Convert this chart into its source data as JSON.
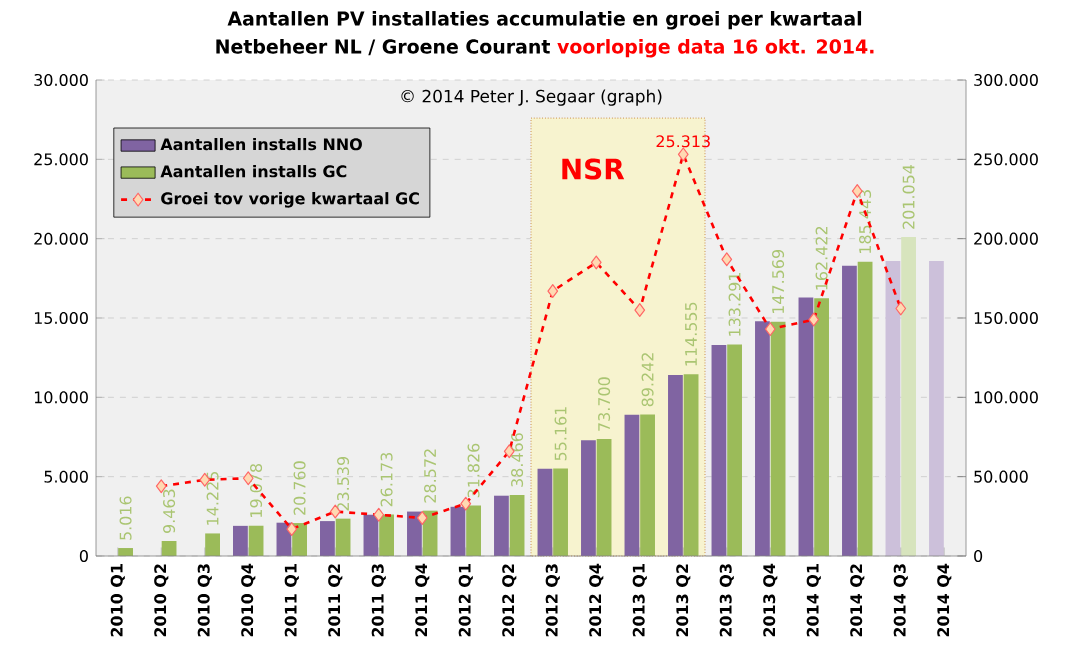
{
  "chart_data": {
    "type": "bar",
    "title": "Aantallen PV installaties accumulatie  en groei per kwartaal",
    "subtitle": "Netbeheer NL / Groene Courant",
    "annotations": [
      "voorlopige data 16 okt. 2014.",
      "© 2014 Peter J. Segaar (graph)"
    ],
    "categories": [
      "2010 Q1",
      "2010 Q2",
      "2010 Q3",
      "2010 Q4",
      "2011 Q1",
      "2011 Q2",
      "2011 Q3",
      "2011 Q4",
      "2012 Q1",
      "2012 Q2",
      "2012 Q3",
      "2012 Q4",
      "2013 Q1",
      "2013 Q2",
      "2013 Q3",
      "2013 Q4",
      "2014 Q1",
      "2014 Q2",
      "2014 Q3",
      "2014 Q4"
    ],
    "series": [
      {
        "name": "Aantallen installs NNO",
        "axis": "y2",
        "color": "#8064a2",
        "colors": [
          "#8064a2",
          "#8064a2",
          "#8064a2",
          "#8064a2",
          "#8064a2",
          "#8064a2",
          "#8064a2",
          "#8064a2",
          "#8064a2",
          "#8064a2",
          "#8064a2",
          "#8064a2",
          "#8064a2",
          "#8064a2",
          "#8064a2",
          "#8064a2",
          "#8064a2",
          "#8064a2",
          "#ccc0da",
          "#ccc0da"
        ],
        "values": [
          null,
          null,
          null,
          19000,
          21000,
          22000,
          26000,
          28000,
          31000,
          38000,
          55000,
          73000,
          89000,
          114000,
          133000,
          148000,
          163000,
          183000,
          186000,
          186000
        ]
      },
      {
        "name": "Aantallen installs GC",
        "axis": "y2",
        "color": "#9bbb59",
        "colors": [
          "#9bbb59",
          "#9bbb59",
          "#9bbb59",
          "#9bbb59",
          "#9bbb59",
          "#9bbb59",
          "#9bbb59",
          "#9bbb59",
          "#9bbb59",
          "#9bbb59",
          "#9bbb59",
          "#9bbb59",
          "#9bbb59",
          "#9bbb59",
          "#9bbb59",
          "#9bbb59",
          "#9bbb59",
          "#9bbb59",
          "#d7e4bd",
          null
        ],
        "values": [
          5016,
          9463,
          14225,
          19078,
          20760,
          23539,
          26173,
          28572,
          31826,
          38466,
          55161,
          73700,
          89242,
          114555,
          133291,
          147569,
          162422,
          185443,
          201054,
          null
        ],
        "value_labels": [
          "5.016",
          "9.463",
          "14.225",
          "19.078",
          "20.760",
          "23.539",
          "26.173",
          "28.572",
          "31.826",
          "38.466",
          "55.161",
          "73.700",
          "89.242",
          "114.555",
          "133.291",
          "147.569",
          "162.422",
          "185.443",
          "201.054",
          null
        ]
      },
      {
        "name": "Groei tov vorige kwartaal GC",
        "type": "line",
        "axis": "y",
        "color": "#ff0000",
        "values": [
          null,
          4400,
          4800,
          4900,
          1700,
          2800,
          2600,
          2400,
          3300,
          6600,
          16700,
          18500,
          15500,
          25313,
          18700,
          14300,
          14900,
          23000,
          15600,
          null
        ],
        "value_labels": [
          null,
          null,
          null,
          null,
          null,
          null,
          null,
          null,
          null,
          null,
          null,
          null,
          null,
          "25.313",
          null,
          null,
          null,
          null,
          null,
          null
        ]
      }
    ],
    "ylim": [
      0,
      30000
    ],
    "yticks": [
      0,
      {
        "value": 5000,
        "label": "5.000"
      },
      {
        "value": 10000,
        "label": "10.000"
      },
      {
        "value": 15000,
        "label": "15.000"
      },
      {
        "value": 20000,
        "label": "20.000"
      },
      {
        "value": 25000,
        "label": "25.000"
      },
      {
        "value": 30000,
        "label": "30.000"
      }
    ],
    "y2lim": [
      0,
      300000
    ],
    "y2ticks": [
      0,
      {
        "value": 50000,
        "label": "50.000"
      },
      {
        "value": 100000,
        "label": "100.000"
      },
      {
        "value": 150000,
        "label": "150.000"
      },
      {
        "value": 200000,
        "label": "200.000"
      },
      {
        "value": 250000,
        "label": "250.000"
      },
      {
        "value": 300000,
        "label": "300.000"
      }
    ],
    "bands": [
      {
        "axis": "x",
        "from": "2012 Q3",
        "to": "2013 Q2",
        "label": "NSR",
        "color": "#f7f3cf"
      }
    ],
    "grid": "y",
    "legend": "top left",
    "marker": "diamond",
    "line_style": "dashed"
  }
}
